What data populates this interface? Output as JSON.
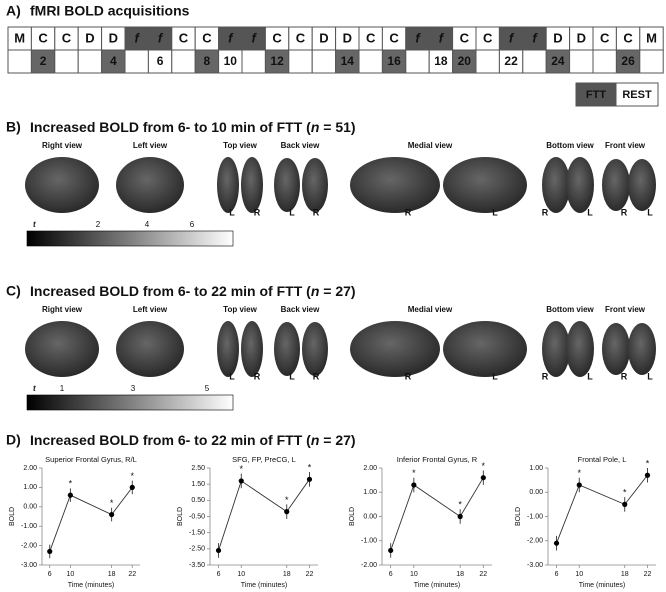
{
  "panel_a": {
    "label": "A)",
    "title": "fMRI BOLD acquisitions",
    "blocks": [
      "M",
      "C",
      "C",
      "D",
      "D",
      "f",
      "f",
      "C",
      "C",
      "f",
      "f",
      "C",
      "C",
      "D",
      "D",
      "C",
      "C",
      "f",
      "f",
      "C",
      "C",
      "f",
      "f",
      "D",
      "D",
      "C",
      "C",
      "M"
    ],
    "minutes": [
      null,
      2,
      null,
      null,
      4,
      null,
      6,
      null,
      8,
      10,
      null,
      12,
      null,
      null,
      14,
      null,
      16,
      null,
      18,
      20,
      null,
      22,
      null,
      24,
      null,
      null,
      26,
      null
    ],
    "legend": [
      "FTT",
      "REST"
    ]
  },
  "panel_b": {
    "label": "B)",
    "title": [
      "Increased BOLD from 6- to 10 min of FTT (",
      "n",
      " = 51)"
    ],
    "views": [
      "Right view",
      "Left view",
      "Top view",
      "Back view",
      "Medial view",
      "Bottom view",
      "Front view"
    ],
    "sides": [
      "L",
      "R",
      "L",
      "R",
      "R",
      "L",
      "R",
      "L",
      "R",
      "L"
    ],
    "colorbar": {
      "symbol": "t",
      "ticks": [
        2,
        4,
        6
      ]
    }
  },
  "panel_c": {
    "label": "C)",
    "title": [
      "Increased BOLD from 6- to 22 min of FTT (",
      "n",
      " = 27)"
    ],
    "views": [
      "Right view",
      "Left view",
      "Top view",
      "Back view",
      "Medial view",
      "Bottom view",
      "Front view"
    ],
    "sides": [
      "L",
      "R",
      "L",
      "R",
      "R",
      "L",
      "R",
      "L",
      "R",
      "L"
    ],
    "colorbar": {
      "symbol": "t",
      "ticks": [
        1,
        3,
        5
      ]
    }
  },
  "panel_d": {
    "label": "D)",
    "title": [
      "Increased BOLD from 6- to 22 min of FTT (",
      "n",
      " = 27)"
    ]
  },
  "chart_data": [
    {
      "type": "line",
      "title": "Superior Frontal Gyrus, R/L",
      "x_label": "Time (minutes)",
      "y_label": "BOLD",
      "x": [
        6,
        10,
        18,
        22
      ],
      "values": [
        -2.3,
        0.6,
        -0.4,
        1.0
      ],
      "errors": [
        0.35,
        0.35,
        0.35,
        0.35
      ],
      "significance": [
        null,
        "*",
        "*",
        "*"
      ],
      "xlim": [
        4.5,
        23.5
      ],
      "xticks": [
        6,
        10,
        18,
        22
      ],
      "ylim": [
        -3,
        2
      ],
      "yticks": [
        {
          "value": 2,
          "label": "2.00"
        },
        {
          "value": 1,
          "label": "1.00"
        },
        {
          "value": 0,
          "label": "0.00"
        },
        {
          "value": -1,
          "label": "-1.00"
        },
        {
          "value": -2,
          "label": "-2.00"
        },
        {
          "value": -3,
          "label": "-3.00"
        }
      ]
    },
    {
      "type": "line",
      "title": "SFG, FP, PreCG, L",
      "x_label": "Time (minutes)",
      "y_label": "BOLD",
      "x": [
        6,
        10,
        18,
        22
      ],
      "values": [
        -2.6,
        1.7,
        -0.2,
        1.8
      ],
      "errors": [
        0.45,
        0.45,
        0.45,
        0.45
      ],
      "significance": [
        null,
        "*",
        "*",
        "*"
      ],
      "xlim": [
        4.5,
        23.5
      ],
      "xticks": [
        6,
        10,
        18,
        22
      ],
      "ylim": [
        -3.5,
        2.5
      ],
      "yticks": [
        {
          "value": 2.5,
          "label": "2.50"
        },
        {
          "value": 1.5,
          "label": "1.50"
        },
        {
          "value": 0.5,
          "label": "0.50"
        },
        {
          "value": -0.5,
          "label": "-0.50"
        },
        {
          "value": -1.5,
          "label": "-1.50"
        },
        {
          "value": -2.5,
          "label": "-2.50"
        },
        {
          "value": -3.5,
          "label": "-3.50"
        }
      ]
    },
    {
      "type": "line",
      "title": "Inferior Frontal Gyrus, R",
      "x_label": "Time (minutes)",
      "y_label": "BOLD",
      "x": [
        6,
        10,
        18,
        22
      ],
      "values": [
        -1.4,
        1.3,
        0.0,
        1.6
      ],
      "errors": [
        0.3,
        0.3,
        0.3,
        0.3
      ],
      "significance": [
        null,
        "*",
        "*",
        "*"
      ],
      "xlim": [
        4.5,
        23.5
      ],
      "xticks": [
        6,
        10,
        18,
        22
      ],
      "ylim": [
        -2,
        2
      ],
      "yticks": [
        {
          "value": 2,
          "label": "2.00"
        },
        {
          "value": 1,
          "label": "1.00"
        },
        {
          "value": 0,
          "label": "0.00"
        },
        {
          "value": -1,
          "label": "-1.00"
        },
        {
          "value": -2,
          "label": "-2.00"
        }
      ]
    },
    {
      "type": "line",
      "title": "Frontal Pole, L",
      "x_label": "Time (minutes)",
      "y_label": "BOLD",
      "x": [
        6,
        10,
        18,
        22
      ],
      "values": [
        -2.1,
        0.3,
        -0.5,
        0.7
      ],
      "errors": [
        0.3,
        0.3,
        0.3,
        0.3
      ],
      "significance": [
        null,
        "*",
        "*",
        "*"
      ],
      "xlim": [
        4.5,
        23.5
      ],
      "xticks": [
        6,
        10,
        18,
        22
      ],
      "ylim": [
        -3,
        1
      ],
      "yticks": [
        {
          "value": 1,
          "label": "1.00"
        },
        {
          "value": 0,
          "label": "0.00"
        },
        {
          "value": -1,
          "label": "-1.00"
        },
        {
          "value": -2,
          "label": "-2.00"
        },
        {
          "value": -3,
          "label": "-3.00"
        }
      ]
    }
  ]
}
